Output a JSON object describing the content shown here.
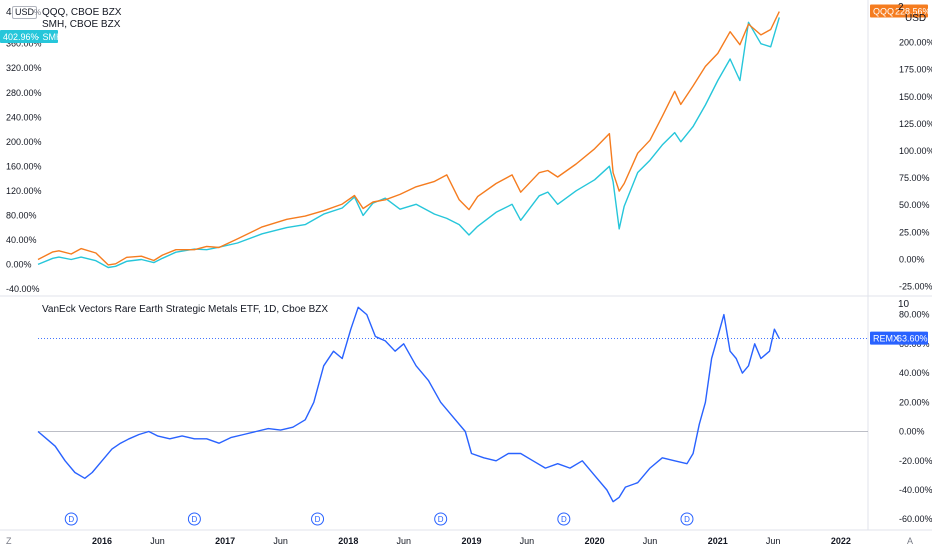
{
  "chart_data": [
    {
      "type": "line",
      "panel": "top",
      "legend": [
        {
          "symbol": "QQQ",
          "exchange": "CBOE BZX",
          "color": "#f57c1f"
        },
        {
          "symbol": "SMH",
          "exchange": "CBOE BZX",
          "color": "#26c6da"
        }
      ],
      "left_axis": {
        "ticks": [
          "360.00%",
          "320.00%",
          "280.00%",
          "240.00%",
          "200.00%",
          "160.00%",
          "120.00%",
          "80.00%",
          "40.00%",
          "0.00%",
          "-40.00%"
        ],
        "range": [
          -45,
          415
        ],
        "currency_badge": "USD",
        "left_stub": "4",
        "pct_symbol": "%"
      },
      "right_axis": {
        "ticks": [
          "200.00%",
          "175.00%",
          "150.00%",
          "125.00%",
          "100.00%",
          "75.00%",
          "50.00%",
          "25.00%",
          "0.00%",
          "-25.00%"
        ],
        "range": [
          -30,
          230
        ],
        "currency_label": "USD",
        "top_stub": "2"
      },
      "labels": {
        "left": {
          "text": "402.96%",
          "series": "SMH",
          "color": "#26c6da"
        },
        "right": {
          "text": "228.56%",
          "series": "QQQ",
          "color": "#f57c1f"
        }
      },
      "series": [
        {
          "name": "QQQ",
          "color": "#f57c1f",
          "axis": "right",
          "x": [
            2015.48,
            2015.6,
            2015.65,
            2015.75,
            2015.83,
            2015.95,
            2016.05,
            2016.11,
            2016.2,
            2016.32,
            2016.42,
            2016.49,
            2016.6,
            2016.75,
            2016.85,
            2016.95,
            2017.1,
            2017.3,
            2017.5,
            2017.65,
            2017.8,
            2017.95,
            2018.05,
            2018.12,
            2018.2,
            2018.3,
            2018.42,
            2018.55,
            2018.7,
            2018.8,
            2018.9,
            2018.98,
            2019.05,
            2019.2,
            2019.33,
            2019.4,
            2019.55,
            2019.62,
            2019.7,
            2019.85,
            2020.0,
            2020.12,
            2020.15,
            2020.2,
            2020.24,
            2020.35,
            2020.45,
            2020.55,
            2020.65,
            2020.7,
            2020.8,
            2020.9,
            2021.0,
            2021.1,
            2021.18,
            2021.25,
            2021.35,
            2021.43,
            2021.5
          ],
          "y": [
            0,
            7,
            8,
            5,
            10,
            6,
            -5,
            -4,
            2,
            3,
            -1,
            4,
            9,
            9,
            12,
            11,
            19,
            30,
            37,
            40,
            45,
            51,
            59,
            47,
            53,
            55,
            60,
            67,
            72,
            78,
            55,
            46,
            58,
            70,
            78,
            62,
            80,
            82,
            76,
            88,
            102,
            116,
            80,
            63,
            70,
            98,
            110,
            132,
            155,
            143,
            160,
            178,
            190,
            210,
            198,
            217,
            207,
            212,
            228.56
          ]
        },
        {
          "name": "SMH",
          "color": "#26c6da",
          "axis": "left",
          "x": [
            2015.48,
            2015.6,
            2015.65,
            2015.75,
            2015.83,
            2015.95,
            2016.05,
            2016.11,
            2016.2,
            2016.32,
            2016.42,
            2016.49,
            2016.6,
            2016.75,
            2016.85,
            2016.95,
            2017.1,
            2017.3,
            2017.5,
            2017.65,
            2017.8,
            2017.95,
            2018.05,
            2018.12,
            2018.2,
            2018.3,
            2018.42,
            2018.55,
            2018.7,
            2018.8,
            2018.9,
            2018.98,
            2019.05,
            2019.2,
            2019.33,
            2019.4,
            2019.55,
            2019.62,
            2019.7,
            2019.85,
            2020.0,
            2020.12,
            2020.15,
            2020.2,
            2020.24,
            2020.35,
            2020.45,
            2020.55,
            2020.65,
            2020.7,
            2020.8,
            2020.9,
            2021.0,
            2021.1,
            2021.18,
            2021.25,
            2021.35,
            2021.43,
            2021.5
          ],
          "y": [
            0,
            10,
            12,
            8,
            12,
            6,
            -5,
            -3,
            5,
            8,
            3,
            10,
            20,
            25,
            24,
            28,
            35,
            50,
            60,
            65,
            82,
            92,
            110,
            80,
            100,
            108,
            90,
            98,
            82,
            75,
            65,
            48,
            62,
            85,
            98,
            72,
            112,
            118,
            98,
            120,
            138,
            160,
            135,
            58,
            95,
            150,
            170,
            195,
            215,
            200,
            225,
            260,
            300,
            335,
            300,
            395,
            360,
            355,
            402.96
          ]
        }
      ],
      "x_range": [
        2015.48,
        2022.22
      ]
    },
    {
      "type": "line",
      "panel": "bottom",
      "title": "VanEck Vectors Rare Earth Strategic Metals ETF, 1D, Cboe BZX",
      "right_axis": {
        "ticks": [
          "80.00%",
          "60.00%",
          "40.00%",
          "20.00%",
          "0.00%",
          "-20.00%",
          "-40.00%",
          "-60.00%"
        ],
        "range": [
          -66,
          90
        ],
        "top_stub": "10"
      },
      "label": {
        "text": "63.60%",
        "series": "REMX",
        "color": "#2962ff"
      },
      "series": [
        {
          "name": "REMX",
          "color": "#2962ff",
          "x": [
            2015.48,
            2015.55,
            2015.62,
            2015.7,
            2015.78,
            2015.86,
            2015.92,
            2016.0,
            2016.08,
            2016.15,
            2016.22,
            2016.3,
            2016.38,
            2016.45,
            2016.55,
            2016.65,
            2016.75,
            2016.85,
            2016.95,
            2017.05,
            2017.15,
            2017.25,
            2017.35,
            2017.45,
            2017.55,
            2017.65,
            2017.72,
            2017.8,
            2017.88,
            2017.95,
            2018.02,
            2018.08,
            2018.15,
            2018.22,
            2018.3,
            2018.38,
            2018.45,
            2018.55,
            2018.65,
            2018.75,
            2018.85,
            2018.95,
            2019.0,
            2019.1,
            2019.2,
            2019.3,
            2019.4,
            2019.5,
            2019.6,
            2019.7,
            2019.8,
            2019.9,
            2020.0,
            2020.1,
            2020.15,
            2020.2,
            2020.25,
            2020.35,
            2020.45,
            2020.55,
            2020.65,
            2020.75,
            2020.8,
            2020.85,
            2020.9,
            2020.95,
            2021.0,
            2021.05,
            2021.1,
            2021.15,
            2021.2,
            2021.25,
            2021.3,
            2021.35,
            2021.42,
            2021.46,
            2021.5
          ],
          "y": [
            0,
            -5,
            -10,
            -20,
            -28,
            -32,
            -28,
            -20,
            -12,
            -8,
            -5,
            -2,
            0,
            -3,
            -5,
            -3,
            -5,
            -5,
            -8,
            -4,
            -2,
            0,
            2,
            1,
            3,
            8,
            20,
            45,
            55,
            50,
            70,
            85,
            80,
            65,
            62,
            55,
            60,
            45,
            35,
            20,
            10,
            0,
            -15,
            -18,
            -20,
            -15,
            -15,
            -20,
            -25,
            -22,
            -25,
            -20,
            -30,
            -40,
            -48,
            -45,
            -38,
            -35,
            -25,
            -18,
            -20,
            -22,
            -15,
            5,
            20,
            50,
            65,
            80,
            55,
            50,
            40,
            45,
            60,
            50,
            55,
            70,
            63.6
          ]
        }
      ],
      "x_range": [
        2015.48,
        2022.22
      ]
    }
  ],
  "x_axis": {
    "ticks": [
      {
        "t": 2016.0,
        "label": "2016",
        "bold": true
      },
      {
        "t": 2016.45,
        "label": "Jun",
        "bold": false
      },
      {
        "t": 2017.0,
        "label": "2017",
        "bold": true
      },
      {
        "t": 2017.45,
        "label": "Jun",
        "bold": false
      },
      {
        "t": 2018.0,
        "label": "2018",
        "bold": true
      },
      {
        "t": 2018.45,
        "label": "Jun",
        "bold": false
      },
      {
        "t": 2019.0,
        "label": "2019",
        "bold": true
      },
      {
        "t": 2019.45,
        "label": "Jun",
        "bold": false
      },
      {
        "t": 2020.0,
        "label": "2020",
        "bold": true
      },
      {
        "t": 2020.45,
        "label": "Jun",
        "bold": false
      },
      {
        "t": 2021.0,
        "label": "2021",
        "bold": true
      },
      {
        "t": 2021.45,
        "label": "Jun",
        "bold": false
      },
      {
        "t": 2022.0,
        "label": "2022",
        "bold": true
      }
    ],
    "dividend_markers": {
      "label": "D",
      "t": [
        2015.75,
        2016.75,
        2017.75,
        2018.75,
        2019.75,
        2020.75
      ]
    },
    "corner_left": "Z",
    "corner_right": "A"
  }
}
